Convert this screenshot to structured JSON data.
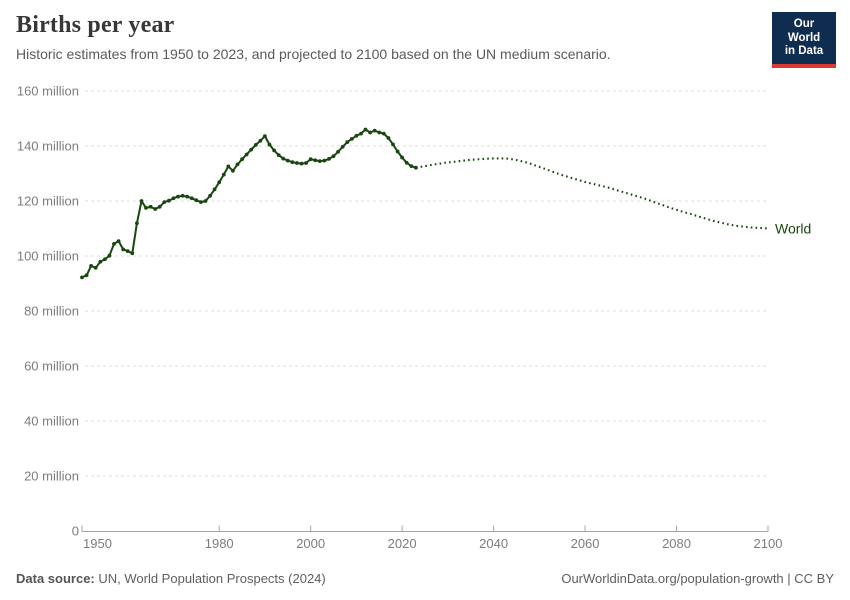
{
  "header": {
    "title": "Births per year",
    "subtitle": "Historic estimates from 1950 to 2023, and projected to 2100 based on the UN medium scenario.",
    "logo": {
      "line1": "Our World",
      "line2": "in Data"
    }
  },
  "footer": {
    "source_label": "Data source:",
    "source_text": " UN, World Population Prospects (2024)",
    "link_text": "OurWorldinData.org/population-growth | CC BY"
  },
  "colors": {
    "series_green": "#18470F",
    "gridline": "#dcdcdc",
    "axis": "#a5a5a5",
    "tick_text": "#7d7d7d",
    "logo_bg": "#0f2d4e",
    "logo_red": "#d93b33"
  },
  "chart_data": {
    "type": "line",
    "title": "Births per year",
    "xlabel": "",
    "ylabel": "",
    "entity_label": "World",
    "grid": "horizontal-dashed",
    "legend_position": "end-of-line-label",
    "xlim": [
      1950,
      2100
    ],
    "ylim": [
      0,
      160000000
    ],
    "x_ticks": [
      1950,
      1980,
      2000,
      2020,
      2040,
      2060,
      2080,
      2100
    ],
    "y_ticks": [
      0,
      20,
      40,
      60,
      80,
      100,
      120,
      140,
      160
    ],
    "y_tick_labels": [
      "0",
      "20 million",
      "40 million",
      "60 million",
      "80 million",
      "100 million",
      "120 million",
      "140 million",
      "160 million"
    ],
    "unit": "births per year (millions)",
    "series": [
      {
        "name": "World — historic estimates",
        "style": "solid",
        "markers": true,
        "start_year": 1950,
        "step": 1,
        "values_millions": [
          92.2,
          93.0,
          96.4,
          95.7,
          97.9,
          98.8,
          100.1,
          104.4,
          105.4,
          102.4,
          101.8,
          101.0,
          111.9,
          120.0,
          117.5,
          117.9,
          117.1,
          117.9,
          119.6,
          120.1,
          121.0,
          121.6,
          121.9,
          121.6,
          121.0,
          120.3,
          119.6,
          120.0,
          121.9,
          124.2,
          126.8,
          129.6,
          132.6,
          131.0,
          133.3,
          135.2,
          136.9,
          138.7,
          140.4,
          141.9,
          143.6,
          140.5,
          138.4,
          136.7,
          135.4,
          134.7,
          134.1,
          133.8,
          133.6,
          133.8,
          135.2,
          134.8,
          134.5,
          134.7,
          135.3,
          136.3,
          137.9,
          139.7,
          141.4,
          142.6,
          143.7,
          144.5,
          146.0,
          144.9,
          145.6,
          144.9,
          144.5,
          142.9,
          140.6,
          138.0,
          135.8,
          133.9,
          132.7,
          132.1
        ]
      },
      {
        "name": "World — UN medium scenario projection",
        "style": "dotted",
        "markers": false,
        "start_year": 2023,
        "step": 1,
        "values_millions": [
          132.1,
          132.4,
          132.7,
          133.0,
          133.3,
          133.5,
          133.8,
          134.0,
          134.2,
          134.4,
          134.6,
          134.8,
          135.0,
          135.1,
          135.2,
          135.3,
          135.4,
          135.5,
          135.5,
          135.5,
          135.4,
          135.2,
          134.9,
          134.5,
          134.1,
          133.6,
          133.0,
          132.4,
          131.8,
          131.2,
          130.6,
          130.0,
          129.4,
          128.9,
          128.4,
          127.9,
          127.4,
          126.9,
          126.5,
          126.1,
          125.7,
          125.3,
          124.9,
          124.4,
          123.9,
          123.4,
          122.9,
          122.4,
          121.9,
          121.4,
          120.9,
          120.3,
          119.7,
          119.1,
          118.5,
          117.9,
          117.3,
          116.8,
          116.3,
          115.8,
          115.3,
          114.8,
          114.3,
          113.8,
          113.3,
          112.8,
          112.4,
          112.0,
          111.6,
          111.3,
          111.0,
          110.8,
          110.6,
          110.4,
          110.3,
          110.2,
          110.1,
          110.0
        ]
      }
    ]
  }
}
